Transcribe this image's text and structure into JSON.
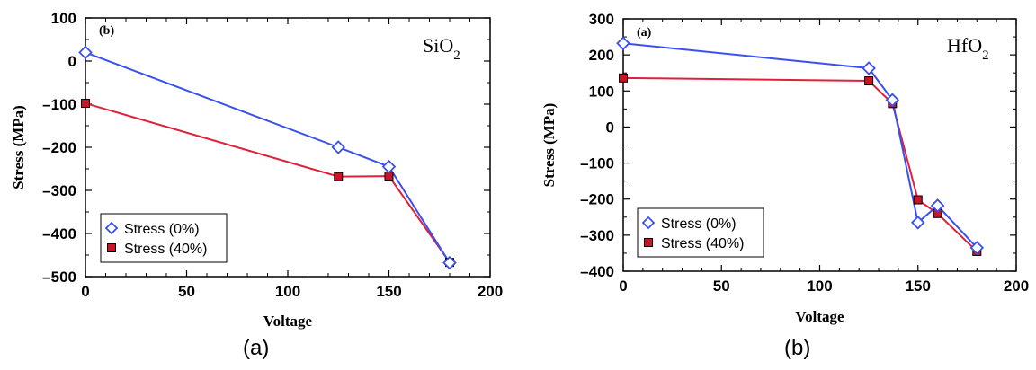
{
  "captions": [
    "(a)",
    "(b)"
  ],
  "colors": {
    "stress_0": "#3a4ff0",
    "stress_40": "#e0203a",
    "marker_40": "#cc1428"
  },
  "chart_data": [
    {
      "type": "line",
      "panel_tag": "(b)",
      "material": "SiO",
      "material_sub": "2",
      "xlabel": "Voltage",
      "ylabel": "Stress (MPa)",
      "xlim": [
        0,
        200
      ],
      "ylim": [
        -500,
        100
      ],
      "xticks": [
        0,
        50,
        100,
        150,
        200
      ],
      "yticks": [
        100,
        0,
        -100,
        -200,
        -300,
        -400,
        -500
      ],
      "legend_position": "bottom-left",
      "series": [
        {
          "name": "Stress (0%)",
          "marker": "diamond-open",
          "color": "#3a4ff0",
          "x": [
            0,
            125,
            150,
            180
          ],
          "y": [
            20,
            -200,
            -245,
            -468
          ]
        },
        {
          "name": "Stress (40%)",
          "marker": "square-filled",
          "color": "#e0203a",
          "x": [
            0,
            125,
            150,
            180
          ],
          "y": [
            -98,
            -268,
            -267,
            -467
          ]
        }
      ]
    },
    {
      "type": "line",
      "panel_tag": "(a)",
      "material": "HfO",
      "material_sub": "2",
      "xlabel": "Voltage",
      "ylabel": "Stress (MPa)",
      "xlim": [
        0,
        200
      ],
      "ylim": [
        -400,
        300
      ],
      "xticks": [
        0,
        50,
        100,
        150,
        200
      ],
      "yticks": [
        300,
        200,
        100,
        0,
        -100,
        -200,
        -300,
        -400
      ],
      "legend_position": "bottom-left",
      "series": [
        {
          "name": "Stress (0%)",
          "marker": "diamond-open",
          "color": "#3a4ff0",
          "x": [
            0,
            125,
            137,
            150,
            160,
            180
          ],
          "y": [
            232,
            163,
            75,
            -265,
            -218,
            -335
          ]
        },
        {
          "name": "Stress (40%)",
          "marker": "square-filled",
          "color": "#e0203a",
          "x": [
            0,
            125,
            137,
            150,
            160,
            180
          ],
          "y": [
            136,
            128,
            65,
            -202,
            -240,
            -345
          ]
        }
      ]
    }
  ]
}
